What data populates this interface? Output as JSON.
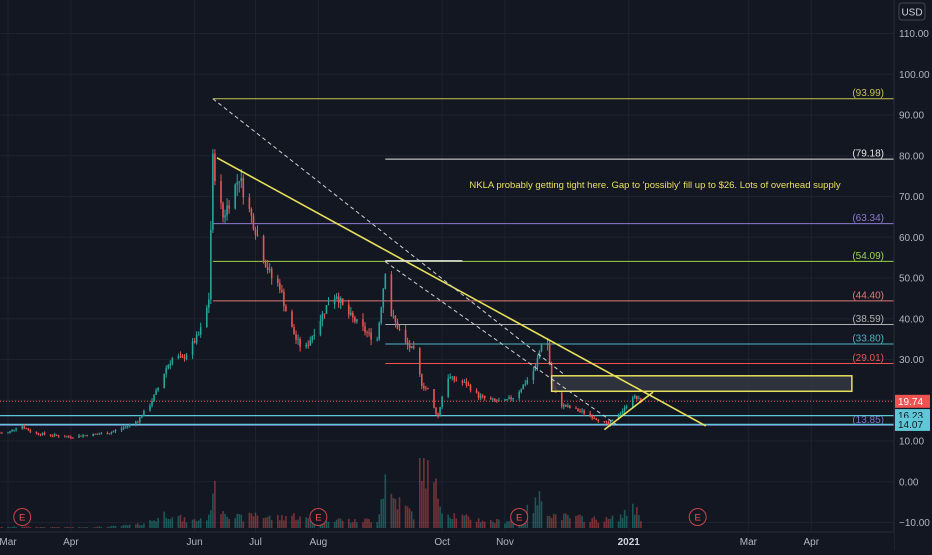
{
  "chart_data": {
    "type": "candlestick",
    "ticker_currency": "USD",
    "annotation": "NKLA probably getting tight here.  Gap to 'possibly' fill up to $26.  Lots of overhead supply",
    "y_ticks": [
      110,
      100,
      90,
      80,
      70,
      60,
      50,
      40,
      30,
      20,
      10,
      0,
      -10
    ],
    "y_tick_labels": [
      "110.00",
      "100.00",
      "90.00",
      "80.00",
      "70.00",
      "60.00",
      "50.00",
      "40.00",
      "30.00",
      "20.00",
      "10.00",
      "0.00",
      "−10.00"
    ],
    "ylim": [
      -12,
      122
    ],
    "x_ticks": [
      {
        "label": "Mar",
        "day": 0
      },
      {
        "label": "Apr",
        "day": 31
      },
      {
        "label": "Jun",
        "day": 92
      },
      {
        "label": "Jul",
        "day": 122
      },
      {
        "label": "Aug",
        "day": 153
      },
      {
        "label": "Oct",
        "day": 214
      },
      {
        "label": "Nov",
        "day": 245
      },
      {
        "label": "2021",
        "day": 306
      },
      {
        "label": "Mar",
        "day": 365
      },
      {
        "label": "Apr",
        "day": 396
      }
    ],
    "earnings_markers_day": [
      7,
      153,
      252,
      340
    ],
    "earnings_label": "E",
    "fib_levels": [
      {
        "label": "(93.99)",
        "value": 93.99,
        "color": "#c8c34a",
        "start_day": 101
      },
      {
        "label": "(79.18)",
        "value": 79.18,
        "color": "#e6e6e6",
        "start_day": 186
      },
      {
        "label": "(63.34)",
        "value": 63.34,
        "color": "#8c7bd0",
        "start_day": 101
      },
      {
        "label": "(54.09)",
        "value": 54.09,
        "color": "#9cd34a",
        "start_day": 101
      },
      {
        "label": "(44.40)",
        "value": 44.4,
        "color": "#e07a7a",
        "start_day": 101
      },
      {
        "label": "(38.59)",
        "value": 38.59,
        "color": "#b0b0b0",
        "start_day": 186
      },
      {
        "label": "(33.80)",
        "value": 33.8,
        "color": "#4fb3c4",
        "start_day": 186
      },
      {
        "label": "(29.01)",
        "value": 29.01,
        "color": "#ef5350",
        "start_day": 186
      },
      {
        "label": "(13.85)",
        "value": 13.85,
        "color": "#7e72c9",
        "start_day": -5
      }
    ],
    "horizontal_lines": [
      {
        "value": 16.23,
        "color": "#5fc8d8"
      },
      {
        "value": 14.07,
        "color": "#5fc8d8"
      }
    ],
    "price_badges": [
      {
        "label": "19.74",
        "value": 19.74,
        "bg": "#ef5350",
        "fg": "#ffffff"
      },
      {
        "label": "16.23",
        "value": 16.23,
        "bg": "#5fc8d8",
        "fg": "#131722"
      },
      {
        "label": "14.07",
        "value": 14.07,
        "bg": "#5fc8d8",
        "fg": "#131722"
      }
    ],
    "current_price": 19.74,
    "trendlines": [
      {
        "from": [
          103,
          79.5
        ],
        "to": [
          344,
          13.7
        ],
        "color": "#e8e05a",
        "style": "solid"
      },
      {
        "from": [
          101,
          93.99
        ],
        "to": [
          275,
          26
        ],
        "color": "#d0d0d0",
        "style": "dashed"
      },
      {
        "from": [
          186,
          54
        ],
        "to": [
          300,
          14
        ],
        "color": "#d0d0d0",
        "style": "dashed"
      },
      {
        "from": [
          186,
          54.2
        ],
        "to": [
          224,
          54.2
        ],
        "color": "#e0e0e0",
        "style": "solid"
      },
      {
        "from": [
          294,
          12.8
        ],
        "to": [
          318,
          22
        ],
        "color": "#e8e05a",
        "style": "solid"
      }
    ],
    "gap_box": {
      "day_start": 268,
      "day_end": 416,
      "low": 22.2,
      "high": 26,
      "color": "#e8e05a"
    },
    "price_series": {
      "days": [
        0,
        6,
        12,
        20,
        30,
        40,
        50,
        58,
        64,
        70,
        74,
        78,
        82,
        86,
        90,
        94,
        97,
        99,
        101,
        103,
        106,
        110,
        114,
        118,
        122,
        126,
        130,
        134,
        138,
        142,
        146,
        150,
        154,
        158,
        162,
        166,
        170,
        174,
        178,
        182,
        186,
        188,
        192,
        196,
        200,
        204,
        208,
        210,
        212,
        216,
        220,
        226,
        232,
        238,
        244,
        250,
        256,
        260,
        264,
        266,
        268,
        272,
        278,
        284,
        290,
        296,
        300,
        304,
        308,
        312
      ],
      "close": [
        12,
        14,
        12,
        11.5,
        11,
        11.5,
        12,
        13.5,
        15,
        19,
        23,
        28,
        31,
        30,
        33,
        36,
        40,
        45,
        79,
        72,
        65,
        70,
        75,
        68,
        62,
        55,
        50,
        48,
        40,
        35,
        32,
        36,
        40,
        44,
        46,
        42,
        40,
        38,
        36,
        35,
        52,
        42,
        38,
        34,
        32,
        24,
        22,
        18,
        16,
        26,
        25,
        24,
        21,
        20,
        19.5,
        21,
        25,
        28,
        36,
        34,
        24,
        19,
        18,
        17,
        15.5,
        14,
        16,
        18,
        21,
        19.74
      ]
    },
    "volume_series": {
      "days": [
        0,
        6,
        12,
        20,
        30,
        40,
        50,
        58,
        64,
        70,
        74,
        78,
        82,
        86,
        90,
        94,
        97,
        99,
        101,
        103,
        106,
        110,
        114,
        118,
        122,
        126,
        130,
        134,
        138,
        142,
        146,
        150,
        154,
        158,
        162,
        166,
        170,
        174,
        178,
        182,
        186,
        188,
        192,
        196,
        200,
        204,
        208,
        210,
        212,
        216,
        220,
        226,
        232,
        238,
        244,
        250,
        256,
        260,
        264,
        266,
        268,
        272,
        278,
        284,
        290,
        296,
        300,
        304,
        308,
        312
      ],
      "volume": [
        0.5,
        1,
        0.6,
        0.5,
        0.5,
        0.6,
        0.8,
        1.5,
        2,
        4,
        6,
        9,
        8,
        5,
        4,
        5,
        7,
        6,
        26,
        15,
        12,
        8,
        6,
        6,
        9,
        7,
        6,
        6,
        8,
        7,
        5,
        6,
        5,
        6,
        5,
        5,
        4,
        4,
        5,
        5,
        30,
        20,
        16,
        12,
        8,
        40,
        30,
        25,
        20,
        9,
        8,
        6,
        5,
        4,
        4,
        6,
        10,
        14,
        20,
        12,
        8,
        7,
        6,
        6,
        5,
        5,
        6,
        8,
        14,
        6
      ],
      "vmax": 42
    },
    "colors": {
      "background": "#131722",
      "grid": "#1e2230",
      "up": "#26a69a",
      "down": "#ef5350",
      "text": "#b2b5be",
      "annotation": "#e8e05a"
    }
  }
}
